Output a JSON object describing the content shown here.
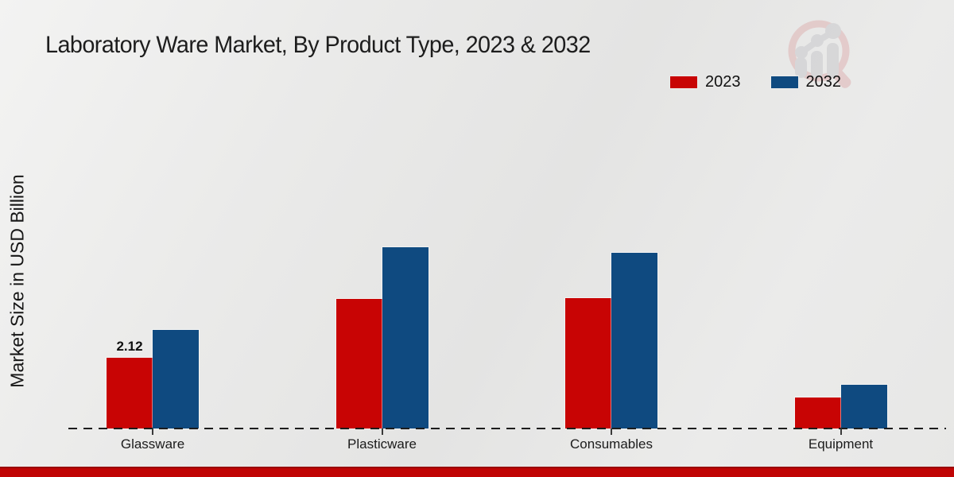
{
  "page": {
    "title": "Laboratory Ware Market, By Product Type, 2023 & 2032"
  },
  "y_axis_label": "Market Size in USD Billion",
  "legend": {
    "items": [
      {
        "label": "2023",
        "color": "#c80404"
      },
      {
        "label": "2032",
        "color": "#0f4a80"
      }
    ]
  },
  "watermark": {
    "name": "market-research-logo"
  },
  "footer": {
    "accent_color": "#c00404"
  },
  "colors": {
    "series_2023": "#c80404",
    "series_2032": "#0f4a80",
    "axis": "#1c1c1c",
    "background": "#e9e9e8"
  },
  "chart_data": {
    "type": "bar",
    "title": "Laboratory Ware Market, By Product Type, 2023 & 2032",
    "categories": [
      "Glassware",
      "Plasticware",
      "Consumables",
      "Equipment"
    ],
    "series": [
      {
        "name": "2023",
        "color": "#c80404",
        "values": [
          2.12,
          3.88,
          3.9,
          0.92
        ],
        "labels": [
          "2.12",
          null,
          null,
          null
        ]
      },
      {
        "name": "2032",
        "color": "#0f4a80",
        "values": [
          2.95,
          5.43,
          5.26,
          1.32
        ],
        "labels": [
          null,
          null,
          null,
          null
        ]
      }
    ],
    "xlabel": "",
    "ylabel": "Market Size in USD Billion",
    "ylim": [
      0,
      6
    ],
    "grid": false,
    "y_axis_ticks_visible": false,
    "legend_position": "top-right",
    "value_unit": "USD Billion"
  }
}
